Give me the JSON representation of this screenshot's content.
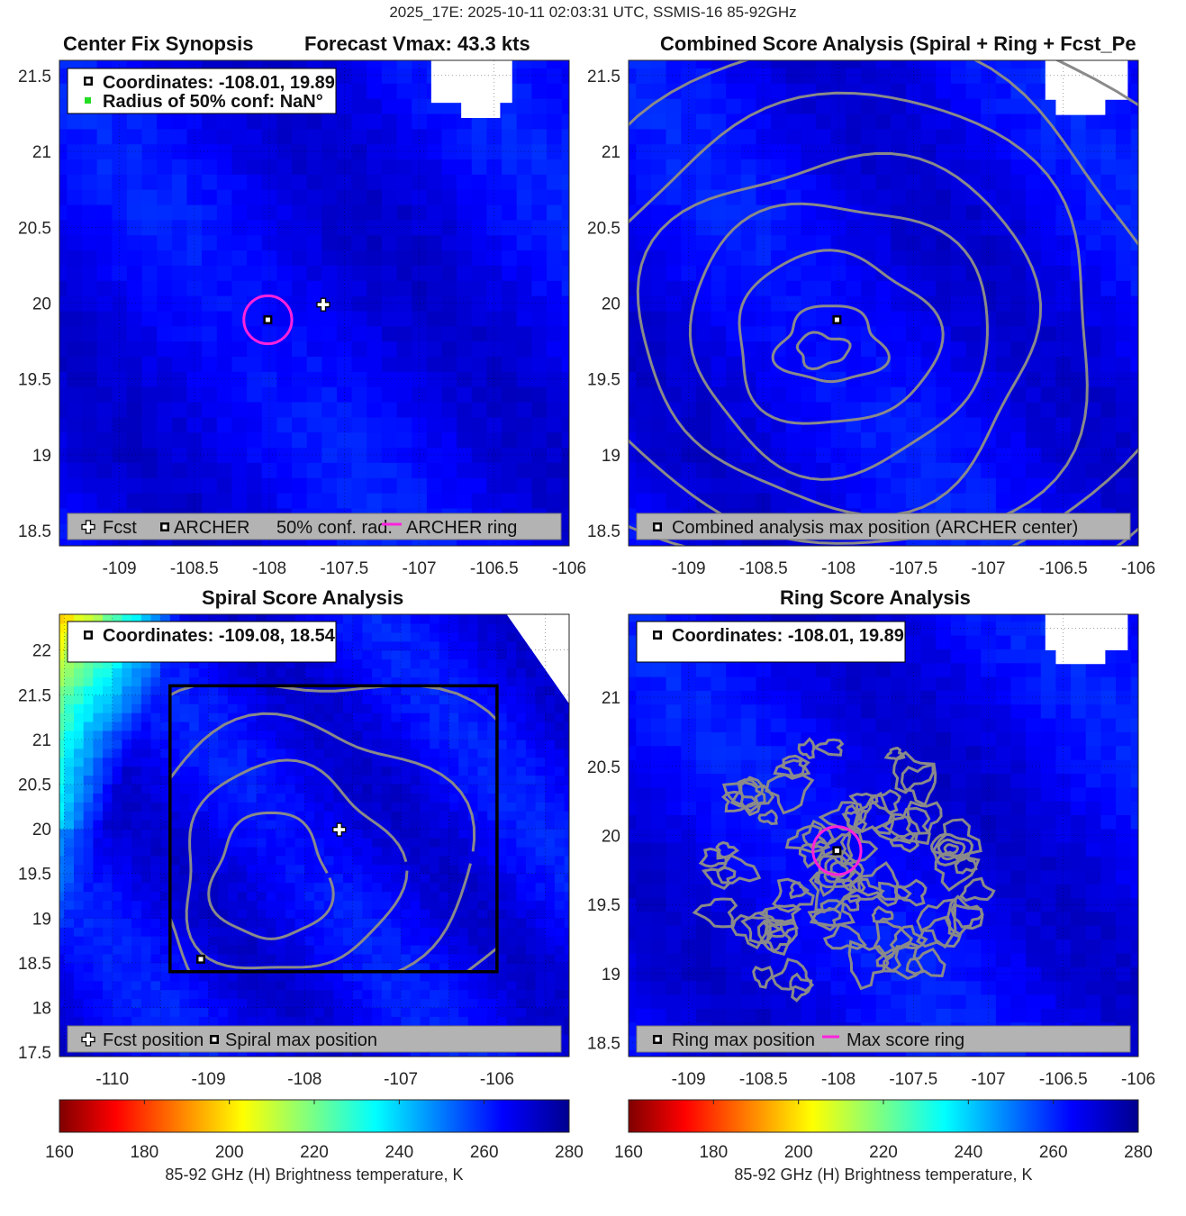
{
  "suptitle": "2025_17E: 2025-10-11 02:03:31 UTC, SSMIS-16 85-92GHz",
  "colors": {
    "archer_ring": "#ff22dd",
    "contour": "#8a8a8a",
    "legend_bg": "#b3b3b3",
    "conf_marker": "#22dd22",
    "background_field": "#1430e0"
  },
  "chart_data": [
    {
      "type": "heatmap",
      "title_left": "Center Fix Synopsis",
      "title_right": "Forecast Vmax: 43.3 kts",
      "xlim": [
        -109.4,
        -106
      ],
      "ylim": [
        18.4,
        21.6
      ],
      "xticks": [
        "-109",
        "-108.5",
        "-108",
        "-107.5",
        "-107",
        "-106.5",
        "-106"
      ],
      "yticks": [
        "18.5",
        "19",
        "19.5",
        "20",
        "20.5",
        "21",
        "21.5"
      ],
      "info_box": [
        "Coordinates: -108.01, 19.89",
        "Radius of 50% conf: NaN°"
      ],
      "legend": [
        "Fcst",
        "ARCHER",
        "50% conf. rad.",
        "ARCHER ring"
      ],
      "archer_center": [
        -108.01,
        19.89
      ],
      "forecast_position": [
        -107.64,
        19.99
      ],
      "archer_ring_radius_deg": 0.16,
      "field_range_K": [
        258,
        275
      ]
    },
    {
      "type": "heatmap",
      "title": "Combined Score Analysis (Spiral + Ring + Fcst_Pe",
      "xlim": [
        -109.4,
        -106
      ],
      "ylim": [
        18.4,
        21.6
      ],
      "xticks": [
        "-109",
        "-108.5",
        "-108",
        "-107.5",
        "-107",
        "-106.5",
        "-106"
      ],
      "yticks": [
        "18.5",
        "19",
        "19.5",
        "20",
        "20.5",
        "21",
        "21.5"
      ],
      "legend": [
        "Combined analysis max position (ARCHER center)"
      ],
      "max_position": [
        -108.01,
        19.89
      ],
      "contours": "concentric score contours centered near (-108.1, 19.75)"
    },
    {
      "type": "heatmap",
      "title": "Spiral Score Analysis",
      "xlim": [
        -110.55,
        -105.25
      ],
      "ylim": [
        17.45,
        22.4
      ],
      "xticks": [
        "-110",
        "-109",
        "-108",
        "-107",
        "-106"
      ],
      "yticks": [
        "17.5",
        "18",
        "18.5",
        "19",
        "19.5",
        "20",
        "20.5",
        "21",
        "21.5",
        "22"
      ],
      "info_box": [
        "Coordinates: -109.08, 18.54"
      ],
      "legend": [
        "Fcst position",
        "Spiral max position"
      ],
      "spiral_max": [
        -109.08,
        18.54
      ],
      "forecast_position": [
        -107.64,
        19.99
      ],
      "search_box": {
        "lon": [
          -109.4,
          -106.0
        ],
        "lat": [
          18.4,
          21.6
        ]
      }
    },
    {
      "type": "heatmap",
      "title": "Ring Score Analysis",
      "xlim": [
        -109.4,
        -106
      ],
      "ylim": [
        18.4,
        21.6
      ],
      "xticks": [
        "-109",
        "-108.5",
        "-108",
        "-107.5",
        "-107",
        "-106.5",
        "-106"
      ],
      "yticks": [
        "18.5",
        "19",
        "19.5",
        "20",
        "20.5",
        "21"
      ],
      "info_box": [
        "Coordinates: -108.01, 19.89"
      ],
      "legend": [
        "Ring max position",
        "Max score ring"
      ],
      "ring_max": [
        -108.01,
        19.89
      ],
      "ring_radius_deg": 0.16
    },
    {
      "type": "colorbar",
      "ticks": [
        "160",
        "180",
        "200",
        "220",
        "240",
        "260",
        "280"
      ],
      "range": [
        160,
        280
      ],
      "label": "85-92 GHz (H) Brightness temperature, K",
      "colormap": "jet_reversed"
    }
  ]
}
